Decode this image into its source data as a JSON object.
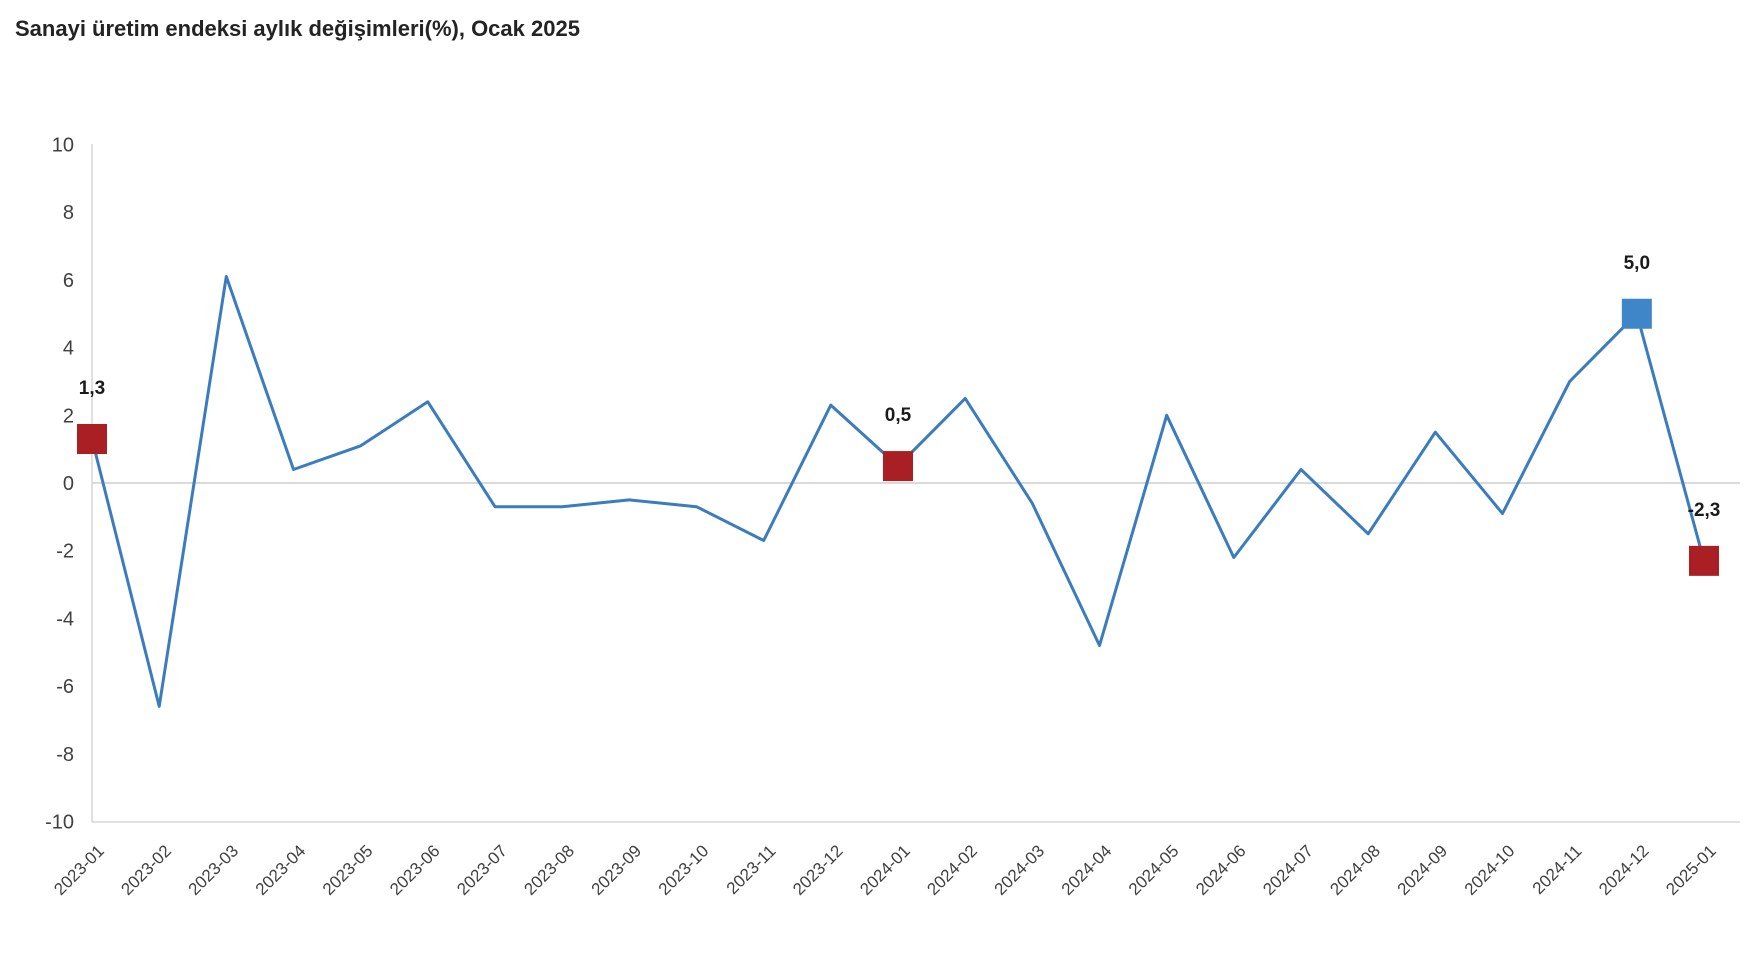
{
  "header": {
    "title": "Sanayi üretim endeksi aylık değişimleri(%), Ocak 2025"
  },
  "chart_data": {
    "type": "line",
    "title": "Sanayi üretim endeksi aylık değişimleri(%), Ocak 2025",
    "categories": [
      "2023-01",
      "2023-02",
      "2023-03",
      "2023-04",
      "2023-05",
      "2023-06",
      "2023-07",
      "2023-08",
      "2023-09",
      "2023-10",
      "2023-11",
      "2023-12",
      "2024-01",
      "2024-02",
      "2024-03",
      "2024-04",
      "2024-05",
      "2024-06",
      "2024-07",
      "2024-08",
      "2024-09",
      "2024-10",
      "2024-11",
      "2024-12",
      "2025-01"
    ],
    "values": [
      1.3,
      -6.6,
      6.1,
      0.4,
      1.1,
      2.4,
      -0.7,
      -0.7,
      -0.5,
      -0.7,
      -1.7,
      2.3,
      0.5,
      2.5,
      -0.6,
      -4.8,
      2.0,
      -2.2,
      0.4,
      -1.5,
      1.5,
      -0.9,
      3.0,
      5.0,
      -2.3
    ],
    "xlabel": "",
    "ylabel": "",
    "ylim": [
      -10,
      10
    ],
    "yticks": [
      10,
      8,
      6,
      4,
      2,
      0,
      -2,
      -4,
      -6,
      -8,
      -10
    ],
    "grid": "zero-line-only",
    "legend": "none",
    "annotations": [
      {
        "category": "2023-01",
        "index": 0,
        "label": "1,3",
        "marker": "square",
        "marker_color": "#a91f24"
      },
      {
        "category": "2024-01",
        "index": 12,
        "label": "0,5",
        "marker": "square",
        "marker_color": "#a91f24"
      },
      {
        "category": "2024-12",
        "index": 23,
        "label": "5,0",
        "marker": "square",
        "marker_color": "#3e86c7"
      },
      {
        "category": "2025-01",
        "index": 24,
        "label": "-2,3",
        "marker": "square",
        "marker_color": "#a91f24"
      }
    ],
    "colors": {
      "line": "#3b7cbe",
      "marker_red": "#a91f24",
      "marker_blue": "#3e86c7",
      "axis_text": "#404040",
      "point_label_text": "#1a1a1a",
      "grid_line": "#dadada",
      "background": "#ffffff"
    }
  }
}
